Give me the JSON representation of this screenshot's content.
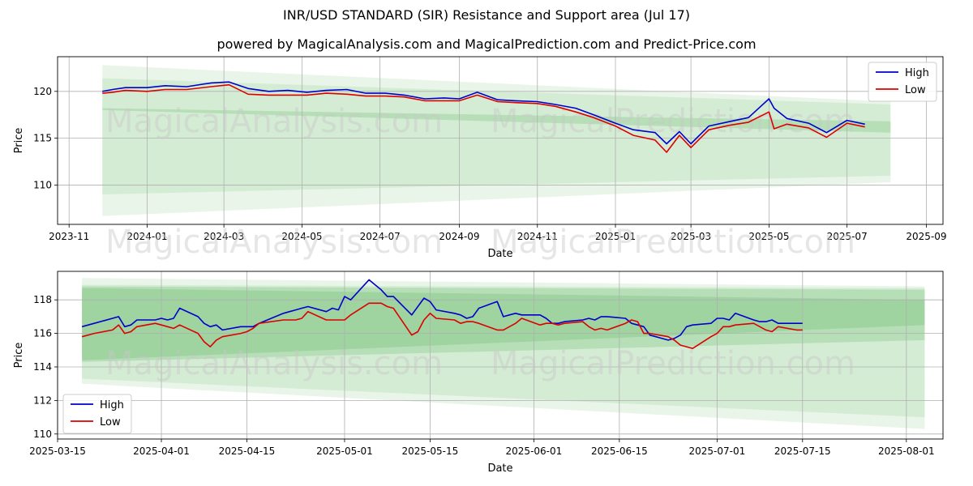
{
  "titles": {
    "main": "INR/USD STANDARD (SIR) Resistance and Support area (Jul 17)",
    "sub": "powered by MagicalAnalysis.com and MagicalPrediction.com and Predict-Price.com"
  },
  "watermarks": [
    "MagicalAnalysis.com",
    "MagicalPrediction.com"
  ],
  "colors": {
    "high": "#0000cc",
    "low": "#dd0000",
    "band": "#4caf50",
    "grid": "#b0b0b0"
  },
  "chart_data": [
    {
      "type": "line",
      "xlabel": "Date",
      "ylabel": "Price",
      "xlim": [
        "2023-10-23",
        "2025-09-14"
      ],
      "ylim": [
        105.8,
        123.7
      ],
      "xticks": [
        "2023-11",
        "2024-01",
        "2024-03",
        "2024-05",
        "2024-07",
        "2024-09",
        "2024-11",
        "2025-01",
        "2025-03",
        "2025-05",
        "2025-07",
        "2025-09"
      ],
      "yticks": [
        110,
        115,
        120
      ],
      "grid": true,
      "legend": "top-right",
      "bands": [
        {
          "x": [
            "2023-11-27",
            "2025-08-04"
          ],
          "top": [
            122.8,
            118.9
          ],
          "bottom": [
            106.7,
            110.3
          ],
          "opacity": 0.13
        },
        {
          "x": [
            "2023-11-27",
            "2025-08-04"
          ],
          "top": [
            121.4,
            118.6
          ],
          "bottom": [
            109.0,
            111.0
          ],
          "opacity": 0.13
        },
        {
          "x": [
            "2023-11-27",
            "2025-08-04"
          ],
          "top": [
            118.2,
            116.8
          ],
          "bottom": [
            118.0,
            115.6
          ],
          "opacity": 0.22
        }
      ],
      "series": [
        {
          "name": "High",
          "x": [
            "2023-11-27",
            "2023-12-05",
            "2023-12-15",
            "2024-01-01",
            "2024-01-15",
            "2024-02-01",
            "2024-02-20",
            "2024-03-05",
            "2024-03-20",
            "2024-04-05",
            "2024-04-20",
            "2024-05-05",
            "2024-05-20",
            "2024-06-05",
            "2024-06-20",
            "2024-07-05",
            "2024-07-20",
            "2024-08-05",
            "2024-08-20",
            "2024-09-01",
            "2024-09-15",
            "2024-10-01",
            "2024-10-15",
            "2024-11-01",
            "2024-11-15",
            "2024-12-01",
            "2024-12-15",
            "2025-01-01",
            "2025-01-15",
            "2025-02-01",
            "2025-02-10",
            "2025-02-20",
            "2025-03-01",
            "2025-03-15",
            "2025-04-01",
            "2025-04-15",
            "2025-05-01",
            "2025-05-05",
            "2025-05-15",
            "2025-06-01",
            "2025-06-15",
            "2025-07-01",
            "2025-07-15"
          ],
          "values": [
            120.0,
            120.2,
            120.4,
            120.4,
            120.6,
            120.5,
            120.9,
            121.0,
            120.3,
            120.0,
            120.1,
            119.9,
            120.1,
            120.2,
            119.8,
            119.8,
            119.6,
            119.2,
            119.3,
            119.2,
            119.9,
            119.1,
            119.0,
            118.9,
            118.6,
            118.2,
            117.5,
            116.6,
            115.9,
            115.6,
            114.4,
            115.7,
            114.4,
            116.3,
            116.8,
            117.2,
            119.2,
            118.2,
            117.1,
            116.6,
            115.6,
            116.9,
            116.5
          ]
        },
        {
          "name": "Low",
          "x": [
            "2023-11-27",
            "2023-12-05",
            "2023-12-15",
            "2024-01-01",
            "2024-01-15",
            "2024-02-01",
            "2024-02-20",
            "2024-03-05",
            "2024-03-20",
            "2024-04-05",
            "2024-04-20",
            "2024-05-05",
            "2024-05-20",
            "2024-06-05",
            "2024-06-20",
            "2024-07-05",
            "2024-07-20",
            "2024-08-05",
            "2024-08-20",
            "2024-09-01",
            "2024-09-15",
            "2024-10-01",
            "2024-10-15",
            "2024-11-01",
            "2024-11-15",
            "2024-12-01",
            "2024-12-15",
            "2025-01-01",
            "2025-01-15",
            "2025-02-01",
            "2025-02-10",
            "2025-02-20",
            "2025-03-01",
            "2025-03-15",
            "2025-04-01",
            "2025-04-15",
            "2025-05-01",
            "2025-05-05",
            "2025-05-15",
            "2025-06-01",
            "2025-06-15",
            "2025-07-01",
            "2025-07-15"
          ],
          "values": [
            119.8,
            119.9,
            120.1,
            120.0,
            120.2,
            120.2,
            120.5,
            120.7,
            119.7,
            119.6,
            119.6,
            119.6,
            119.8,
            119.7,
            119.5,
            119.5,
            119.4,
            119.0,
            119.0,
            119.0,
            119.6,
            118.9,
            118.8,
            118.7,
            118.4,
            117.8,
            117.2,
            116.3,
            115.3,
            114.8,
            113.5,
            115.3,
            114.0,
            115.9,
            116.4,
            116.7,
            117.8,
            116.0,
            116.5,
            116.1,
            115.1,
            116.6,
            116.2
          ]
        }
      ]
    },
    {
      "type": "line",
      "xlabel": "Date",
      "ylabel": "Price",
      "xlim": [
        "2025-03-15",
        "2025-08-07"
      ],
      "ylim": [
        109.7,
        119.7
      ],
      "xticks": [
        "2025-03-15",
        "2025-04-01",
        "2025-04-15",
        "2025-05-01",
        "2025-05-15",
        "2025-06-01",
        "2025-06-15",
        "2025-07-01",
        "2025-07-15",
        "2025-08-01"
      ],
      "yticks": [
        110,
        112,
        114,
        116,
        118
      ],
      "grid": true,
      "legend": "bottom-left",
      "bands": [
        {
          "x": [
            "2025-03-19",
            "2025-08-04"
          ],
          "top": [
            119.3,
            118.8
          ],
          "bottom": [
            113.0,
            110.3
          ],
          "opacity": 0.13
        },
        {
          "x": [
            "2025-03-19",
            "2025-08-04"
          ],
          "top": [
            118.9,
            118.7
          ],
          "bottom": [
            113.3,
            111.0
          ],
          "opacity": 0.13
        },
        {
          "x": [
            "2025-03-19",
            "2025-08-04"
          ],
          "top": [
            118.8,
            118.6
          ],
          "bottom": [
            114.3,
            115.6
          ],
          "opacity": 0.22
        },
        {
          "x": [
            "2025-03-19",
            "2025-08-04"
          ],
          "top": [
            118.7,
            118.0
          ],
          "bottom": [
            114.4,
            116.5
          ],
          "opacity": 0.22
        }
      ],
      "series": [
        {
          "name": "High",
          "x": [
            "2025-03-19",
            "2025-03-21",
            "2025-03-24",
            "2025-03-25",
            "2025-03-26",
            "2025-03-27",
            "2025-03-28",
            "2025-03-31",
            "2025-04-01",
            "2025-04-02",
            "2025-04-03",
            "2025-04-04",
            "2025-04-07",
            "2025-04-08",
            "2025-04-09",
            "2025-04-10",
            "2025-04-11",
            "2025-04-14",
            "2025-04-15",
            "2025-04-16",
            "2025-04-17",
            "2025-04-21",
            "2025-04-22",
            "2025-04-23",
            "2025-04-24",
            "2025-04-25",
            "2025-04-28",
            "2025-04-29",
            "2025-04-30",
            "2025-05-01",
            "2025-05-02",
            "2025-05-05",
            "2025-05-06",
            "2025-05-07",
            "2025-05-08",
            "2025-05-09",
            "2025-05-12",
            "2025-05-13",
            "2025-05-14",
            "2025-05-15",
            "2025-05-16",
            "2025-05-19",
            "2025-05-20",
            "2025-05-21",
            "2025-05-22",
            "2025-05-23",
            "2025-05-26",
            "2025-05-27",
            "2025-05-28",
            "2025-05-29",
            "2025-05-30",
            "2025-06-02",
            "2025-06-03",
            "2025-06-04",
            "2025-06-05",
            "2025-06-06",
            "2025-06-09",
            "2025-06-10",
            "2025-06-11",
            "2025-06-12",
            "2025-06-13",
            "2025-06-16",
            "2025-06-17",
            "2025-06-18",
            "2025-06-19",
            "2025-06-20",
            "2025-06-23",
            "2025-06-24",
            "2025-06-25",
            "2025-06-26",
            "2025-06-27",
            "2025-06-30",
            "2025-07-01",
            "2025-07-02",
            "2025-07-03",
            "2025-07-04",
            "2025-07-07",
            "2025-07-08",
            "2025-07-09",
            "2025-07-10",
            "2025-07-11",
            "2025-07-14",
            "2025-07-15"
          ],
          "values": [
            116.4,
            116.6,
            116.9,
            117.0,
            116.4,
            116.5,
            116.8,
            116.8,
            116.9,
            116.8,
            116.9,
            117.5,
            117.0,
            116.6,
            116.4,
            116.5,
            116.2,
            116.4,
            116.4,
            116.4,
            116.6,
            117.2,
            117.3,
            117.4,
            117.5,
            117.6,
            117.3,
            117.5,
            117.4,
            118.2,
            118.0,
            119.2,
            118.9,
            118.6,
            118.2,
            118.2,
            117.1,
            117.6,
            118.1,
            117.9,
            117.4,
            117.2,
            117.1,
            116.9,
            117.0,
            117.5,
            117.9,
            117.0,
            117.1,
            117.2,
            117.1,
            117.1,
            116.9,
            116.6,
            116.6,
            116.7,
            116.8,
            116.9,
            116.8,
            117.0,
            117.0,
            116.9,
            116.6,
            116.5,
            116.4,
            115.9,
            115.6,
            115.7,
            115.9,
            116.4,
            116.5,
            116.6,
            116.9,
            116.9,
            116.8,
            117.2,
            116.8,
            116.7,
            116.7,
            116.8,
            116.6,
            116.6,
            116.6
          ]
        },
        {
          "name": "Low",
          "x": [
            "2025-03-19",
            "2025-03-21",
            "2025-03-24",
            "2025-03-25",
            "2025-03-26",
            "2025-03-27",
            "2025-03-28",
            "2025-03-31",
            "2025-04-01",
            "2025-04-02",
            "2025-04-03",
            "2025-04-04",
            "2025-04-07",
            "2025-04-08",
            "2025-04-09",
            "2025-04-10",
            "2025-04-11",
            "2025-04-14",
            "2025-04-15",
            "2025-04-16",
            "2025-04-17",
            "2025-04-21",
            "2025-04-22",
            "2025-04-23",
            "2025-04-24",
            "2025-04-25",
            "2025-04-28",
            "2025-04-29",
            "2025-04-30",
            "2025-05-01",
            "2025-05-02",
            "2025-05-05",
            "2025-05-06",
            "2025-05-07",
            "2025-05-08",
            "2025-05-09",
            "2025-05-12",
            "2025-05-13",
            "2025-05-14",
            "2025-05-15",
            "2025-05-16",
            "2025-05-19",
            "2025-05-20",
            "2025-05-21",
            "2025-05-22",
            "2025-05-23",
            "2025-05-26",
            "2025-05-27",
            "2025-05-28",
            "2025-05-29",
            "2025-05-30",
            "2025-06-02",
            "2025-06-03",
            "2025-06-04",
            "2025-06-05",
            "2025-06-06",
            "2025-06-09",
            "2025-06-10",
            "2025-06-11",
            "2025-06-12",
            "2025-06-13",
            "2025-06-16",
            "2025-06-17",
            "2025-06-18",
            "2025-06-19",
            "2025-06-20",
            "2025-06-23",
            "2025-06-24",
            "2025-06-25",
            "2025-06-26",
            "2025-06-27",
            "2025-06-30",
            "2025-07-01",
            "2025-07-02",
            "2025-07-03",
            "2025-07-04",
            "2025-07-07",
            "2025-07-08",
            "2025-07-09",
            "2025-07-10",
            "2025-07-11",
            "2025-07-14",
            "2025-07-15"
          ],
          "values": [
            115.8,
            116.0,
            116.2,
            116.5,
            116.0,
            116.1,
            116.4,
            116.6,
            116.5,
            116.4,
            116.3,
            116.5,
            116.0,
            115.5,
            115.2,
            115.6,
            115.8,
            116.0,
            116.1,
            116.3,
            116.6,
            116.8,
            116.8,
            116.8,
            116.9,
            117.3,
            116.8,
            116.8,
            116.8,
            116.8,
            117.1,
            117.8,
            117.8,
            117.8,
            117.6,
            117.5,
            115.9,
            116.1,
            116.8,
            117.2,
            116.9,
            116.8,
            116.6,
            116.7,
            116.7,
            116.6,
            116.2,
            116.2,
            116.4,
            116.6,
            116.9,
            116.5,
            116.6,
            116.6,
            116.5,
            116.6,
            116.7,
            116.4,
            116.2,
            116.3,
            116.2,
            116.6,
            116.8,
            116.7,
            116.0,
            116.0,
            115.8,
            115.6,
            115.3,
            115.2,
            115.1,
            115.8,
            116.0,
            116.4,
            116.4,
            116.5,
            116.6,
            116.4,
            116.2,
            116.1,
            116.4,
            116.2,
            116.2
          ]
        }
      ]
    }
  ]
}
